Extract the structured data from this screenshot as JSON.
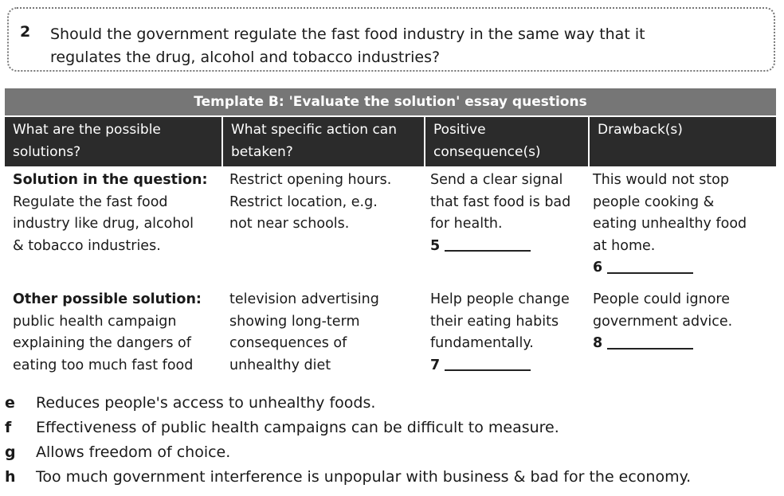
{
  "question": {
    "number": "2",
    "line1": "Should the government regulate the fast food industry in the same way that it",
    "line2": "regulates the drug, alcohol and tobacco industries?"
  },
  "template": {
    "title": "Template B: 'Evaluate the solution' essay questions",
    "headers": [
      [
        "What are the possible",
        "solutions?"
      ],
      [
        "What specific action can",
        "betaken?"
      ],
      [
        "Positive",
        "consequence(s)"
      ],
      [
        "Drawback(s)"
      ]
    ],
    "rows": [
      {
        "col1_heading": "Solution in the question:",
        "col1": [
          "Regulate the fast food",
          "industry like drug, alcohol",
          "& tobacco industries."
        ],
        "col2": [
          "Restrict opening hours.",
          "Restrict location, e.g.",
          "not near schools."
        ],
        "col3": [
          "Send a clear signal",
          "that fast food is bad",
          "for health."
        ],
        "col3_answer": "5",
        "col4": [
          "This would not stop",
          "people cooking &",
          "eating unhealthy food",
          "at home."
        ],
        "col4_answer": "6"
      },
      {
        "col1_heading": "Other possible solution:",
        "col1": [
          "public health campaign",
          "explaining the dangers of",
          "eating too much fast food"
        ],
        "col2": [
          "television advertising",
          "showing long-term",
          "consequences of",
          "unhealthy diet"
        ],
        "col3": [
          "Help people change",
          "their eating habits",
          "fundamentally."
        ],
        "col3_answer": "7",
        "col4": [
          "People could ignore",
          "government advice."
        ],
        "col4_answer": "8"
      }
    ]
  },
  "options": [
    {
      "letter": "e",
      "text": "Reduces people's access to unhealthy foods."
    },
    {
      "letter": "f",
      "text": "Effectiveness of public health campaigns can be difficult to measure."
    },
    {
      "letter": "g",
      "text": "Allows freedom of choice."
    },
    {
      "letter": "h",
      "text": "Too much government interference is unpopular with business & bad for the economy."
    }
  ],
  "colors": {
    "title_bar": "#767676",
    "header_bar": "#2b2b2b",
    "text": "#1a1a1a"
  }
}
